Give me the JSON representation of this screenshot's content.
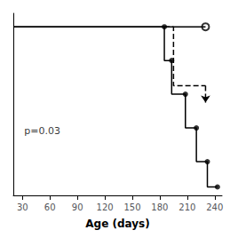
{
  "chart_data": {
    "type": "line",
    "xlabel": "Age (days)",
    "xlim": [
      20,
      248
    ],
    "ylim": [
      0.0,
      1.08
    ],
    "xticks": [
      30,
      60,
      90,
      120,
      150,
      180,
      210,
      240
    ],
    "tick_labels": "x",
    "grid": false,
    "color": "#000000",
    "annotations": [
      {
        "text": "p=0.03",
        "x": 32,
        "y": 0.38
      }
    ],
    "series": [
      {
        "type": "line",
        "x": [
          20,
          230
        ],
        "values": [
          1.0,
          1.0
        ],
        "line_style": "solid"
      },
      {
        "type": "scatter",
        "x": [
          230
        ],
        "values": [
          1.0
        ],
        "marker": "open circle"
      },
      {
        "type": "line",
        "x": [
          185,
          195,
          195,
          230
        ],
        "values": [
          1.0,
          1.0,
          0.65,
          0.65
        ],
        "line_style": "dashed"
      },
      {
        "type": "line",
        "x": [
          230,
          230
        ],
        "values": [
          0.65,
          0.55
        ],
        "line_style": "dashed",
        "marker": "arrow"
      },
      {
        "type": "line",
        "x": [
          20,
          185,
          185,
          193,
          193,
          208,
          208,
          220,
          220,
          232,
          232,
          243
        ],
        "values": [
          1.0,
          1.0,
          0.8,
          0.8,
          0.6,
          0.6,
          0.4,
          0.4,
          0.2,
          0.2,
          0.05,
          0.05
        ],
        "line_style": "solid"
      },
      {
        "type": "scatter",
        "x": [
          185,
          193,
          208,
          220,
          232,
          243
        ],
        "values": [
          1.0,
          0.8,
          0.6,
          0.4,
          0.2,
          0.05
        ],
        "marker": "filled circle"
      }
    ]
  }
}
